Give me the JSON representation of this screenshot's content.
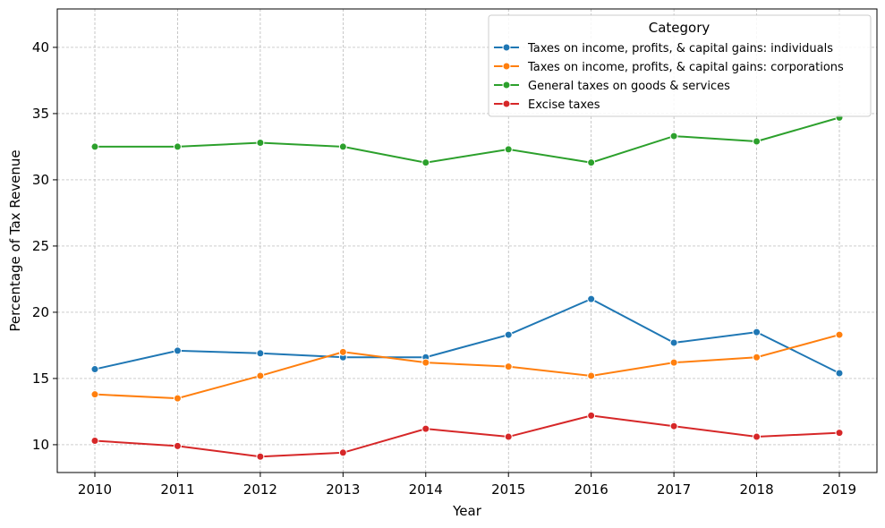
{
  "chart_data": {
    "type": "line",
    "xlabel": "Year",
    "ylabel": "Percentage of Tax Revenue",
    "x": [
      "2010",
      "2011",
      "2012",
      "2013",
      "2014",
      "2015",
      "2016",
      "2017",
      "2018",
      "2019"
    ],
    "yticks": [
      "10",
      "15",
      "20",
      "25",
      "30",
      "35",
      "40"
    ],
    "ylim": [
      7.9,
      42.9
    ],
    "grid": true,
    "legend": {
      "title": "Category",
      "position": "top-right"
    },
    "series": [
      {
        "name": "Taxes on income, profits, & capital gains: individuals",
        "color": "#1f77b4",
        "values": [
          15.7,
          17.1,
          16.9,
          16.6,
          16.6,
          18.3,
          21.0,
          17.7,
          18.5,
          15.4
        ]
      },
      {
        "name": "Taxes on income, profits, & capital gains: corporations",
        "color": "#ff7f0e",
        "values": [
          13.8,
          13.5,
          15.2,
          17.0,
          16.2,
          15.9,
          15.2,
          16.2,
          16.6,
          18.3
        ]
      },
      {
        "name": "General taxes on goods & services",
        "color": "#2ca02c",
        "values": [
          32.5,
          32.5,
          32.8,
          32.5,
          31.3,
          32.3,
          31.3,
          33.3,
          32.9,
          34.7
        ]
      },
      {
        "name": "Excise taxes",
        "color": "#d62728",
        "values": [
          10.3,
          9.9,
          9.1,
          9.4,
          11.2,
          10.6,
          12.2,
          11.4,
          10.6,
          10.9
        ]
      }
    ]
  }
}
